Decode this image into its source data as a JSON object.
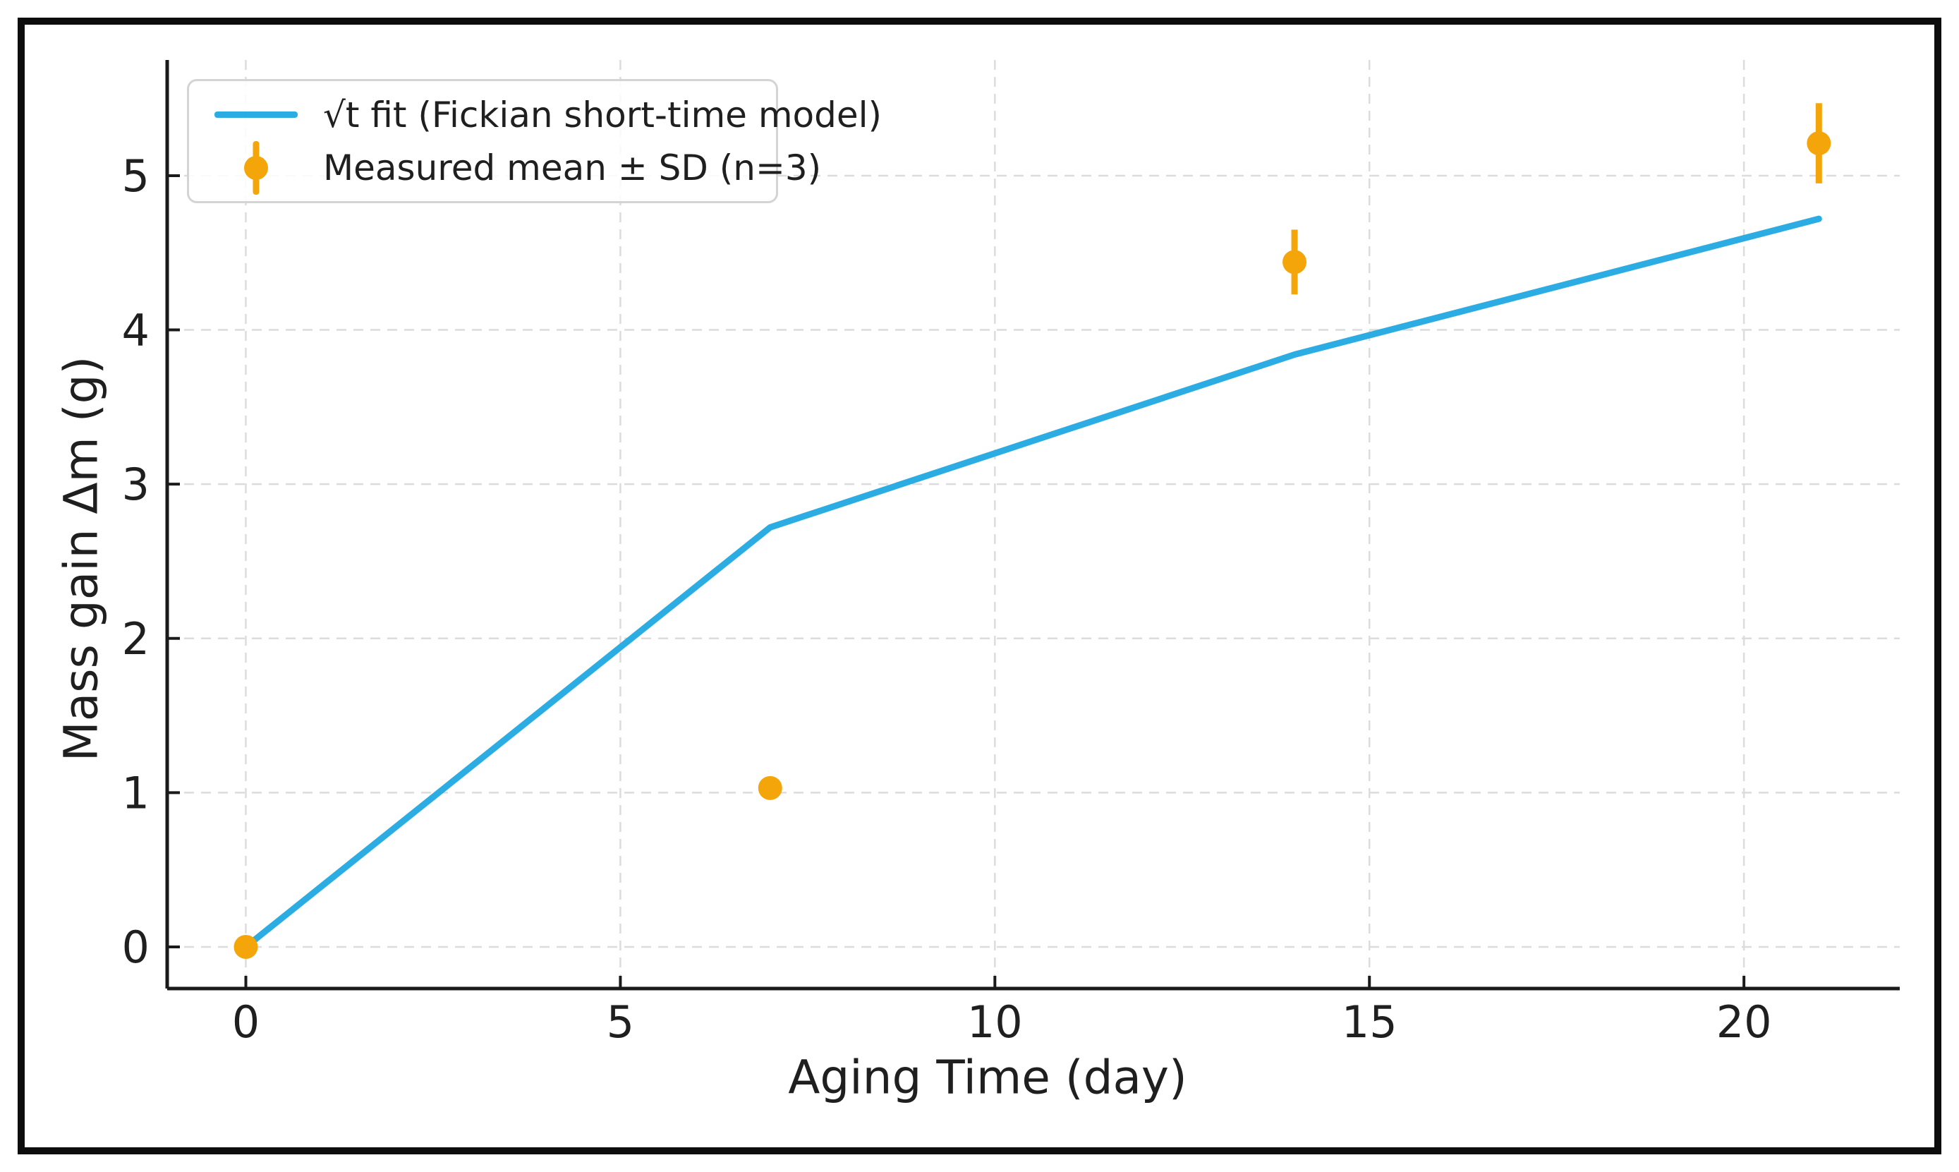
{
  "figure": {
    "background": "#ffffff",
    "frame_color": "#0d0d0d"
  },
  "chart_data": {
    "type": "line",
    "title": "",
    "xlabel": "Aging Time (day)",
    "ylabel": "Mass gain Δm (g)",
    "xlim": [
      -1.05,
      22.08
    ],
    "ylim": [
      -0.27,
      5.75
    ],
    "xticks": [
      0,
      5,
      10,
      15,
      20
    ],
    "yticks": [
      0,
      1,
      2,
      3,
      4,
      5
    ],
    "grid": true,
    "grid_color": "#dcdcdc",
    "axis_color": "#1a1a1a",
    "legend_position": "upper-left",
    "series": [
      {
        "name": "√t fit (Fickian short-time model)",
        "type": "line",
        "color": "#2BACE2",
        "x": [
          0,
          7,
          14,
          21
        ],
        "y": [
          0.0,
          2.72,
          3.84,
          4.72
        ]
      },
      {
        "name": "Measured mean ± SD (n=3)",
        "type": "scatter",
        "color": "#F3A50A",
        "x": [
          0,
          7,
          14,
          21
        ],
        "y": [
          0.0,
          1.03,
          4.44,
          5.21
        ],
        "sd": [
          0.0,
          0.05,
          0.21,
          0.26
        ]
      }
    ]
  }
}
